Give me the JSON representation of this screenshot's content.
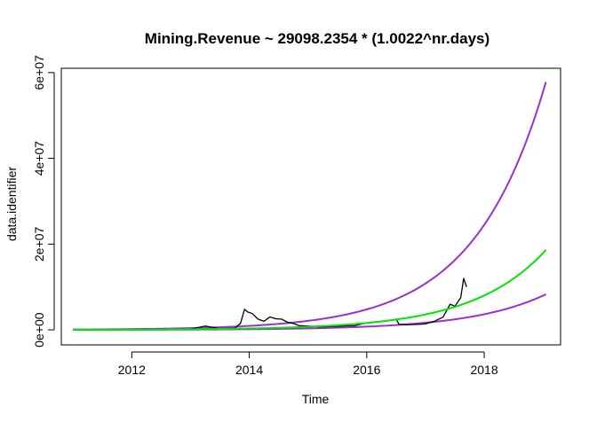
{
  "chart_data": {
    "type": "line",
    "title": "Mining.Revenue ~ 29098.2354 * (1.0022^nr.days)",
    "xlabel": "Time",
    "ylabel": "data.identifier",
    "xlim": [
      2010.8,
      2019.3
    ],
    "ylim": [
      -3500000,
      61000000
    ],
    "x_ticks": [
      2012,
      2014,
      2016,
      2018
    ],
    "x_tick_labels": [
      "2012",
      "2014",
      "2016",
      "2018"
    ],
    "y_ticks": [
      0,
      20000000,
      40000000,
      60000000
    ],
    "y_tick_labels": [
      "0e+00",
      "2e+07",
      "4e+07",
      "6e+07"
    ],
    "grid": false,
    "legend": "none",
    "series": [
      {
        "color": "#000000",
        "style": "observed",
        "x": [
          2011.0,
          2011.5,
          2012.0,
          2012.5,
          2013.0,
          2013.25,
          2013.5,
          2013.75,
          2013.85,
          2013.92,
          2013.97,
          2014.05,
          2014.15,
          2014.25,
          2014.35,
          2014.45,
          2014.55,
          2014.65,
          2014.75,
          2014.85,
          2015.0,
          2015.2,
          2015.4,
          2015.6,
          2015.8,
          2015.95,
          2016.1,
          2016.3,
          2016.5,
          2016.55,
          2016.7,
          2016.9,
          2017.0,
          2017.15,
          2017.3,
          2017.42,
          2017.5,
          2017.6,
          2017.65,
          2017.7
        ],
        "y": [
          50000,
          60000,
          120000,
          200000,
          200000,
          900000,
          300000,
          400000,
          1500000,
          4800000,
          4200000,
          3800000,
          2500000,
          2000000,
          3000000,
          2600000,
          2500000,
          1800000,
          1500000,
          1000000,
          900000,
          700000,
          800000,
          900000,
          1000000,
          1500000,
          1800000,
          2000000,
          2500000,
          1300000,
          1200000,
          1300000,
          1400000,
          2000000,
          3000000,
          6000000,
          5500000,
          7500000,
          12000000,
          10000000
        ]
      },
      {
        "color": "#00e600",
        "style": "fitted",
        "formula": "29098.2354 * (1.0022^nr.days)",
        "base": 29098.2354,
        "rate": 1.0022,
        "x_start": 2011.0,
        "x_end": 2019.05,
        "days_per_year": 365.25
      },
      {
        "color": "#9932cc",
        "style": "upper",
        "x_start": 2011.0,
        "x_end": 2019.05,
        "y_start": 80000,
        "y_end": 57800000
      },
      {
        "color": "#9932cc",
        "style": "lower",
        "x_start": 2011.0,
        "x_end": 2019.05,
        "y_start": 15000,
        "y_end": 8300000
      }
    ]
  }
}
